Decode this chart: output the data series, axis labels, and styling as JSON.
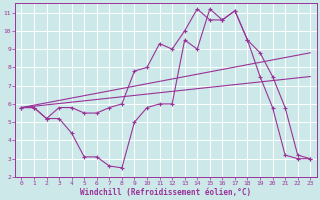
{
  "xlabel": "Windchill (Refroidissement éolien,°C)",
  "xlim": [
    -0.5,
    23.5
  ],
  "ylim": [
    2,
    11.5
  ],
  "xticks": [
    0,
    1,
    2,
    3,
    4,
    5,
    6,
    7,
    8,
    9,
    10,
    11,
    12,
    13,
    14,
    15,
    16,
    17,
    18,
    19,
    20,
    21,
    22,
    23
  ],
  "yticks": [
    2,
    3,
    4,
    5,
    6,
    7,
    8,
    9,
    10,
    11
  ],
  "background_color": "#cce8e8",
  "grid_color": "#b0d0d0",
  "line_color": "#993399",
  "lines": [
    {
      "x": [
        0,
        1,
        2,
        3,
        4,
        5,
        6,
        7,
        8,
        9,
        10,
        11,
        12,
        13,
        14,
        15,
        16,
        17,
        18,
        19,
        20,
        21,
        22,
        23
      ],
      "y": [
        5.8,
        5.8,
        5.2,
        5.2,
        4.4,
        3.1,
        3.1,
        2.6,
        2.5,
        5.0,
        5.8,
        6.0,
        6.0,
        9.5,
        9.0,
        11.2,
        10.6,
        11.1,
        9.5,
        7.5,
        5.8,
        3.2,
        3.0,
        3.0
      ],
      "marker": true
    },
    {
      "x": [
        0,
        1,
        2,
        3,
        4,
        5,
        6,
        7,
        8,
        9,
        10,
        11,
        12,
        13,
        14,
        15,
        16,
        17,
        18,
        19,
        20,
        21,
        22,
        23
      ],
      "y": [
        5.8,
        5.8,
        5.2,
        5.8,
        5.8,
        5.5,
        5.5,
        5.8,
        6.0,
        7.8,
        8.0,
        9.3,
        9.0,
        10.0,
        11.2,
        10.6,
        10.6,
        11.1,
        9.5,
        8.8,
        7.5,
        5.8,
        3.2,
        3.0
      ],
      "marker": true
    },
    {
      "x": [
        0,
        23
      ],
      "y": [
        5.8,
        8.8
      ],
      "marker": false
    },
    {
      "x": [
        0,
        23
      ],
      "y": [
        5.8,
        7.5
      ],
      "marker": false
    }
  ]
}
